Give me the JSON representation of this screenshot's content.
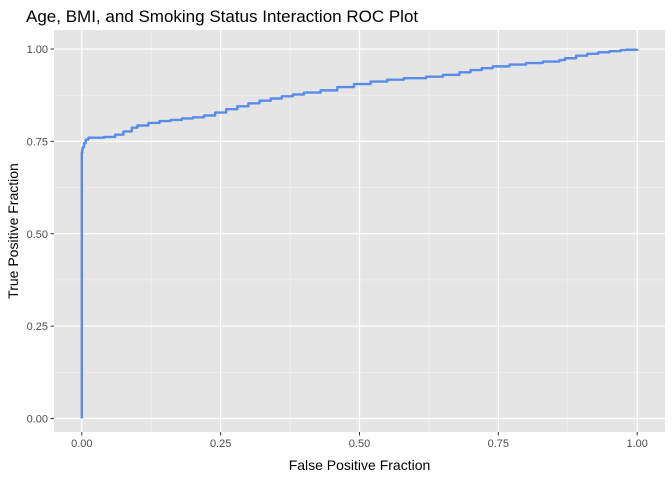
{
  "chart_data": {
    "type": "line",
    "title": "Age, BMI, and Smoking Status Interaction ROC Plot",
    "xlabel": "False Positive Fraction",
    "ylabel": "True Positive Fraction",
    "xlim": [
      0,
      1
    ],
    "ylim": [
      0,
      1
    ],
    "x_ticks": [
      0,
      0.25,
      0.5,
      0.75,
      1
    ],
    "x_tick_labels": [
      "0.00",
      "0.25",
      "0.50",
      "0.75",
      "1.00"
    ],
    "y_ticks": [
      0,
      0.25,
      0.5,
      0.75,
      1
    ],
    "y_tick_labels": [
      "0.00",
      "0.25",
      "0.50",
      "0.75",
      "1.00"
    ],
    "grid": true,
    "series": [
      {
        "color": "#5b8bea",
        "x": [
          0,
          0,
          0.001,
          0.002,
          0.004,
          0.007,
          0.012,
          0.025,
          0.04,
          0.06,
          0.075,
          0.09,
          0.1,
          0.12,
          0.14,
          0.16,
          0.18,
          0.2,
          0.22,
          0.24,
          0.26,
          0.28,
          0.3,
          0.32,
          0.34,
          0.36,
          0.38,
          0.4,
          0.43,
          0.46,
          0.49,
          0.52,
          0.55,
          0.58,
          0.62,
          0.65,
          0.68,
          0.7,
          0.72,
          0.74,
          0.77,
          0.8,
          0.83,
          0.86,
          0.87,
          0.89,
          0.91,
          0.93,
          0.95,
          0.97,
          0.98,
          1.0
        ],
        "y": [
          0,
          0.72,
          0.73,
          0.735,
          0.745,
          0.755,
          0.76,
          0.76,
          0.762,
          0.768,
          0.777,
          0.787,
          0.793,
          0.8,
          0.805,
          0.808,
          0.812,
          0.815,
          0.82,
          0.828,
          0.837,
          0.845,
          0.853,
          0.86,
          0.866,
          0.872,
          0.877,
          0.882,
          0.888,
          0.897,
          0.905,
          0.912,
          0.917,
          0.921,
          0.925,
          0.93,
          0.937,
          0.943,
          0.948,
          0.953,
          0.958,
          0.962,
          0.966,
          0.97,
          0.975,
          0.982,
          0.987,
          0.991,
          0.994,
          0.997,
          0.998,
          1.0
        ]
      }
    ]
  }
}
